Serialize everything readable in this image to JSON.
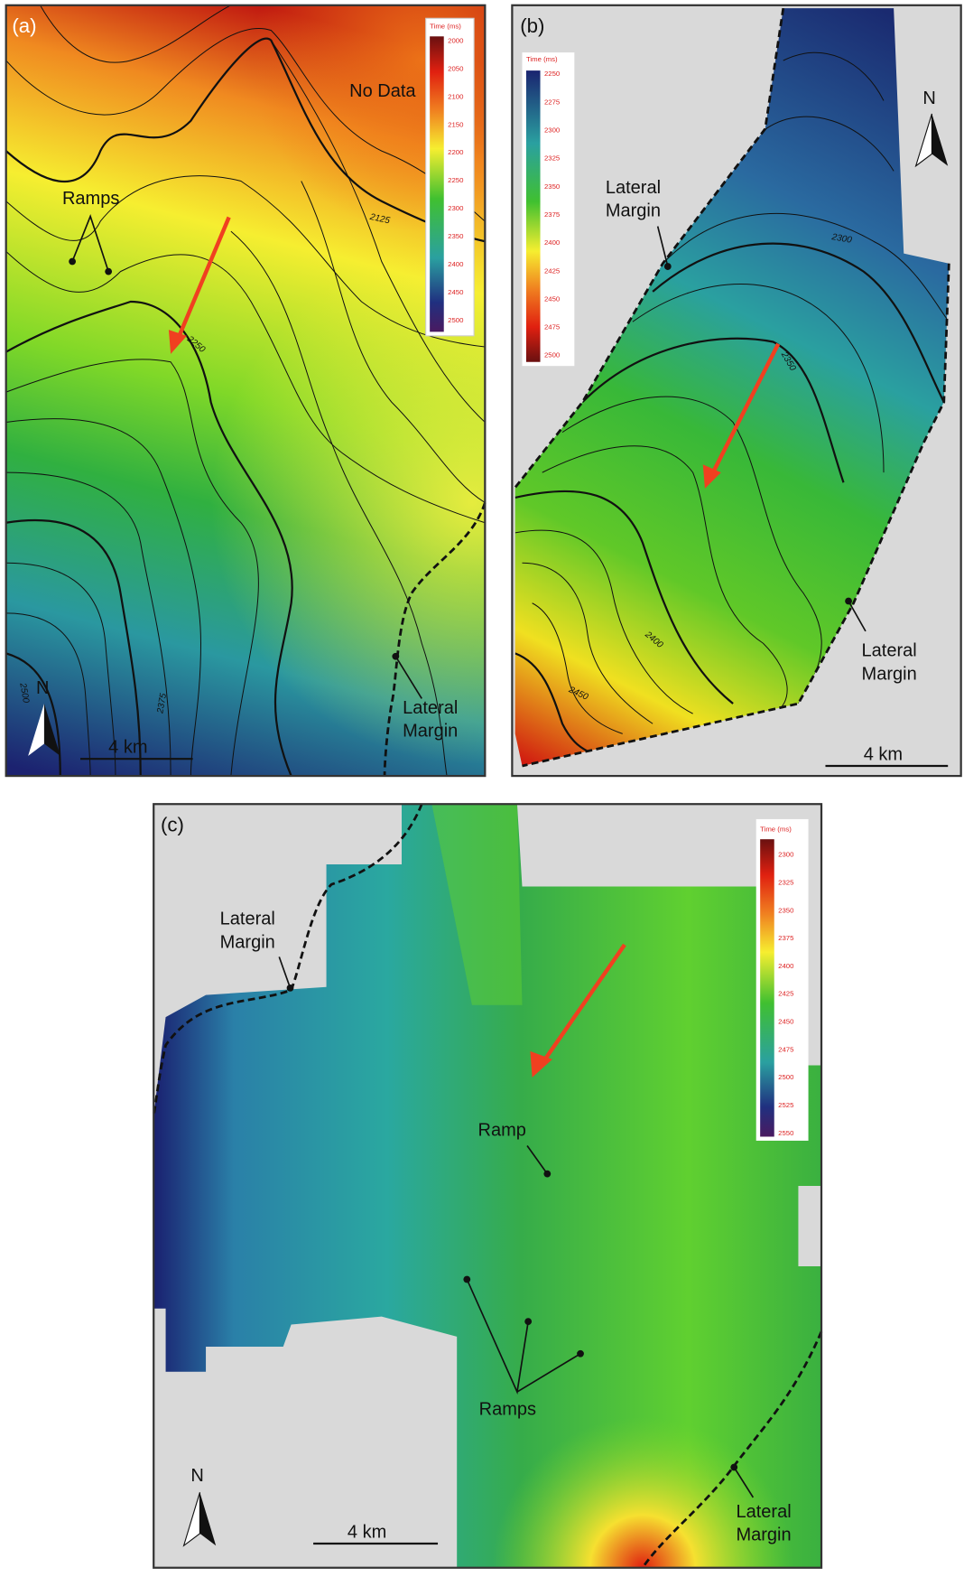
{
  "panels": [
    {
      "label": "(a)",
      "colorbar": {
        "title": "Time (ms)",
        "ticks": [
          "2000",
          "2050",
          "2100",
          "2150",
          "2200",
          "2250",
          "2300",
          "2350",
          "2400",
          "2450",
          "2500"
        ]
      },
      "contour_labels": [
        "2125",
        "2250",
        "2375",
        "2500"
      ],
      "annotations": {
        "no_data": "No Data",
        "ramps": "Ramps",
        "lateral_margin": [
          "Lateral",
          "Margin"
        ]
      },
      "north": "N",
      "scale": "4 km"
    },
    {
      "label": "(b)",
      "colorbar": {
        "title": "Time (ms)",
        "ticks": [
          "2250",
          "2275",
          "2300",
          "2325",
          "2350",
          "2375",
          "2400",
          "2425",
          "2450",
          "2475",
          "2500"
        ]
      },
      "contour_labels": [
        "2300",
        "2350",
        "2400",
        "2450"
      ],
      "annotations": {
        "lateral_margin_top": [
          "Lateral",
          "Margin"
        ],
        "lateral_margin_bottom": [
          "Lateral",
          "Margin"
        ]
      },
      "north": "N",
      "scale": "4 km"
    },
    {
      "label": "(c)",
      "colorbar": {
        "title": "Time (ms)",
        "ticks": [
          "2300",
          "2325",
          "2350",
          "2375",
          "2400",
          "2425",
          "2450",
          "2475",
          "2500",
          "2525",
          "2550"
        ]
      },
      "annotations": {
        "lateral_margin_top": [
          "Lateral",
          "Margin"
        ],
        "ramp": "Ramp",
        "ramps": "Ramps",
        "lateral_margin_bottom": [
          "Lateral",
          "Margin"
        ]
      },
      "north": "N",
      "scale": "4 km"
    }
  ]
}
